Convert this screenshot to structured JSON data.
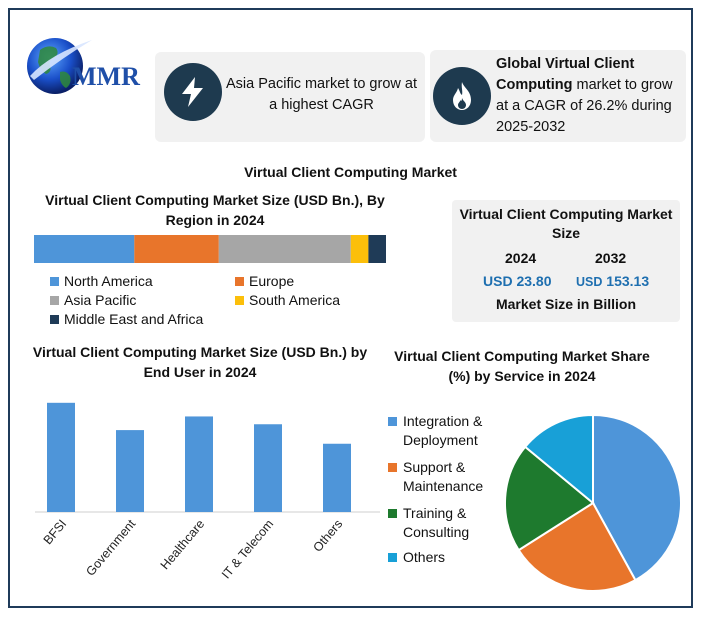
{
  "brand": {
    "logo_text": "MMR"
  },
  "cards": {
    "left": {
      "icon": "lightning-icon",
      "text": "Asia Pacific market to grow at a highest CAGR"
    },
    "right": {
      "icon": "flame-icon",
      "bold_text": "Global Virtual Client Computing",
      "text": " market to grow at a CAGR of 26.2% during 2025-2032"
    }
  },
  "main_title": "Virtual Client Computing Market",
  "market_size": {
    "title": "Virtual Client Computing Market Size",
    "years": [
      "2024",
      "2032"
    ],
    "currency": "USD",
    "values": [
      "23.80",
      "153.13"
    ],
    "footer": "Market Size in Billion"
  },
  "colors": {
    "blue": "#4e95d9",
    "orange": "#e8752b",
    "gray": "#a6a6a6",
    "yellow": "#fcbf0a",
    "navy": "#1f3b57",
    "green": "#1e7a2e",
    "cyan": "#18a0d7"
  },
  "chart_data": [
    {
      "type": "bar",
      "orientation": "horizontal-stacked",
      "title": "Virtual Client Computing Market Size (USD Bn.), By Region in 2024",
      "series": [
        {
          "name": "North America",
          "values": [
            28.5
          ]
        },
        {
          "name": "Europe",
          "values": [
            24
          ]
        },
        {
          "name": "Asia Pacific",
          "values": [
            37.5
          ]
        },
        {
          "name": "South America",
          "values": [
            5
          ]
        },
        {
          "name": "Middle East and Africa",
          "values": [
            5
          ]
        }
      ],
      "legend": "bottom"
    },
    {
      "type": "bar",
      "title": "Virtual Client Computing  Market Size (USD Bn.) by End User in 2024",
      "categories": [
        "BFSI",
        "Government",
        "Healthcare",
        "IT & Telecom",
        "Others"
      ],
      "values": [
        112,
        84,
        98,
        90,
        70
      ],
      "ylim": [
        0,
        120
      ],
      "grid": false
    },
    {
      "type": "pie",
      "title": "Virtual Client Computing  Market Share (%) by Service in 2024",
      "categories": [
        "Integration & Deployment",
        "Support & Maintenance",
        "Training & Consulting",
        "Others"
      ],
      "values": [
        42,
        24,
        20,
        14
      ],
      "legend": "left"
    }
  ]
}
